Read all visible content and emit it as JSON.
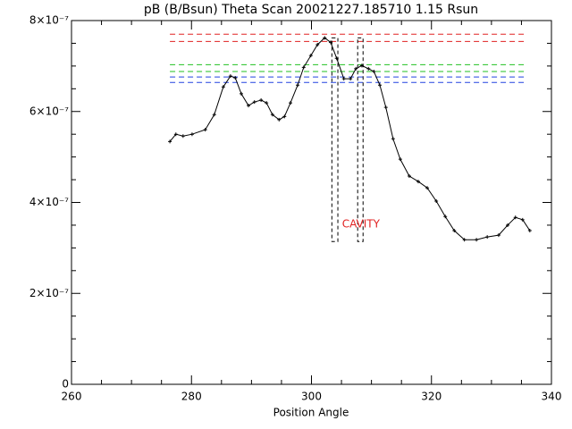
{
  "chart_data": {
    "type": "line",
    "title": "pB (B/Bsun) Theta Scan 20021227.185710 1.15 Rsun",
    "x_label": "Position Angle",
    "xlim": [
      260,
      340
    ],
    "xticks": [
      260,
      280,
      300,
      320,
      340
    ],
    "xminorticks": [
      265,
      270,
      275,
      285,
      290,
      295,
      305,
      310,
      315,
      325,
      330,
      335
    ],
    "ylim": [
      0,
      8e-07
    ],
    "yticks": [
      0,
      {
        "value": 2e-07,
        "label": "2×10⁻⁷"
      },
      {
        "value": 4e-07,
        "label": "4×10⁻⁷"
      },
      {
        "value": 6e-07,
        "label": "6×10⁻⁷"
      },
      {
        "value": 8e-07,
        "label": "8×10⁻⁷"
      }
    ],
    "yminorticks": [
      5e-08,
      1e-07,
      1.5e-07,
      2.5e-07,
      3e-07,
      3.5e-07,
      4.5e-07,
      5e-07,
      5.5e-07,
      6.5e-07,
      7e-07,
      7.5e-07
    ],
    "color": "#000000",
    "x": [
      276.4,
      277.4,
      278.6,
      280.1,
      282.3,
      283.8,
      285.3,
      286.5,
      287.3,
      288.3,
      289.5,
      290.5,
      291.6,
      292.5,
      293.5,
      294.6,
      295.5,
      296.5,
      297.7,
      298.7,
      299.9,
      301.0,
      302.2,
      303.2,
      304.2,
      305.4,
      306.5,
      307.4,
      308.4,
      309.5,
      310.4,
      311.4,
      312.4,
      313.6,
      314.8,
      316.3,
      317.8,
      319.3,
      320.8,
      322.3,
      323.8,
      325.5,
      327.5,
      329.3,
      331.2,
      332.7,
      334.0,
      335.2,
      336.4
    ],
    "values": [
      5.34e-07,
      5.5e-07,
      5.46e-07,
      5.5e-07,
      5.6e-07,
      5.93e-07,
      6.54e-07,
      6.78e-07,
      6.74e-07,
      6.39e-07,
      6.13e-07,
      6.21e-07,
      6.25e-07,
      6.19e-07,
      5.93e-07,
      5.82e-07,
      5.89e-07,
      6.19e-07,
      6.58e-07,
      6.97e-07,
      7.23e-07,
      7.47e-07,
      7.62e-07,
      7.52e-07,
      7.17e-07,
      6.72e-07,
      6.72e-07,
      6.94e-07,
      7.01e-07,
      6.94e-07,
      6.88e-07,
      6.58e-07,
      6.09e-07,
      5.4e-07,
      4.95e-07,
      4.58e-07,
      4.46e-07,
      4.32e-07,
      4.03e-07,
      3.69e-07,
      3.38e-07,
      3.18e-07,
      3.18e-07,
      3.24e-07,
      3.28e-07,
      3.5e-07,
      3.67e-07,
      3.62e-07,
      3.38e-07
    ],
    "reference_xrange": [
      276.4,
      335.9
    ],
    "reference_lines": [
      {
        "y": 7.7e-07,
        "color": "#e02020"
      },
      {
        "y": 7.54e-07,
        "color": "#e02020"
      },
      {
        "y": 7.03e-07,
        "color": "#20c020"
      },
      {
        "y": 6.88e-07,
        "color": "#20c020"
      },
      {
        "y": 6.76e-07,
        "color": "#2040e0"
      },
      {
        "y": 6.64e-07,
        "color": "#2040e0"
      }
    ],
    "cavity_boxes": [
      {
        "x": [
          303.4,
          304.4
        ],
        "y": [
          3.14e-07,
          7.62e-07
        ]
      },
      {
        "x": [
          307.7,
          308.6
        ],
        "y": [
          3.14e-07,
          7.62e-07
        ]
      }
    ],
    "annotation": {
      "text": "CAVITY",
      "x": 305.1,
      "y": 3.52e-07,
      "color": "#e02020"
    }
  }
}
